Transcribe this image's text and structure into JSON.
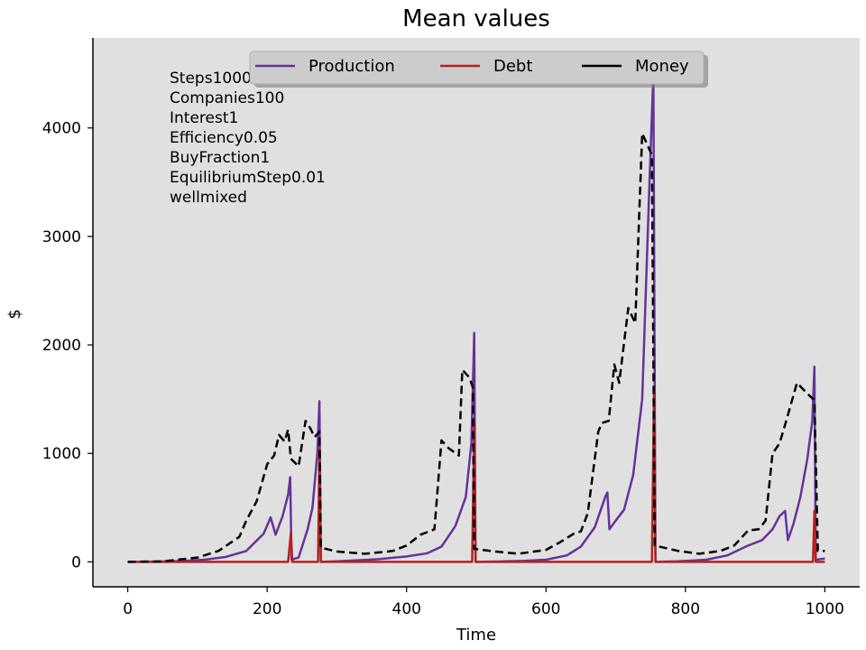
{
  "chart_data": {
    "type": "line",
    "title": "Mean values",
    "xlabel": "Time",
    "ylabel": "$",
    "xlim": [
      -50,
      1050
    ],
    "ylim": [
      -230,
      4830
    ],
    "xticks": [
      0,
      200,
      400,
      600,
      800,
      1000
    ],
    "yticks": [
      0,
      1000,
      2000,
      3000,
      4000
    ],
    "grid": false,
    "background": "#e0e0e0",
    "legend": {
      "placement": "top-center",
      "entries": [
        {
          "label": "Production",
          "color": "#663399",
          "style": "solid"
        },
        {
          "label": "Debt",
          "color": "#b22222",
          "style": "solid"
        },
        {
          "label": "Money",
          "color": "#000000",
          "style": "dashed"
        }
      ]
    },
    "annotation_lines": [
      "Steps1000",
      "Companies100",
      "Interest1",
      "Efficiency0.05",
      "BuyFraction1",
      "EquilibriumStep0.01",
      "wellmixed"
    ],
    "series": [
      {
        "name": "Production",
        "color": "#663399",
        "style": "solid",
        "points": [
          [
            0,
            0
          ],
          [
            40,
            2
          ],
          [
            80,
            8
          ],
          [
            110,
            20
          ],
          [
            140,
            45
          ],
          [
            170,
            100
          ],
          [
            195,
            260
          ],
          [
            205,
            410
          ],
          [
            212,
            250
          ],
          [
            222,
            420
          ],
          [
            230,
            620
          ],
          [
            233,
            780
          ],
          [
            235,
            20
          ],
          [
            245,
            40
          ],
          [
            258,
            300
          ],
          [
            265,
            500
          ],
          [
            272,
            1000
          ],
          [
            275,
            1480
          ],
          [
            277,
            0
          ],
          [
            300,
            5
          ],
          [
            330,
            15
          ],
          [
            360,
            25
          ],
          [
            400,
            50
          ],
          [
            430,
            80
          ],
          [
            450,
            140
          ],
          [
            470,
            330
          ],
          [
            485,
            600
          ],
          [
            493,
            1100
          ],
          [
            497,
            2110
          ],
          [
            499,
            0
          ],
          [
            530,
            3
          ],
          [
            570,
            10
          ],
          [
            600,
            20
          ],
          [
            630,
            60
          ],
          [
            650,
            140
          ],
          [
            670,
            320
          ],
          [
            685,
            600
          ],
          [
            688,
            640
          ],
          [
            691,
            300
          ],
          [
            700,
            380
          ],
          [
            712,
            480
          ],
          [
            725,
            800
          ],
          [
            738,
            1500
          ],
          [
            748,
            3400
          ],
          [
            754,
            4500
          ],
          [
            757,
            0
          ],
          [
            790,
            5
          ],
          [
            830,
            20
          ],
          [
            860,
            60
          ],
          [
            890,
            150
          ],
          [
            910,
            200
          ],
          [
            925,
            300
          ],
          [
            935,
            420
          ],
          [
            943,
            470
          ],
          [
            947,
            200
          ],
          [
            955,
            350
          ],
          [
            965,
            600
          ],
          [
            975,
            950
          ],
          [
            982,
            1300
          ],
          [
            985,
            1800
          ],
          [
            987,
            20
          ],
          [
            1000,
            30
          ]
        ]
      },
      {
        "name": "Debt",
        "color": "#b22222",
        "style": "solid",
        "points": [
          [
            0,
            0
          ],
          [
            230,
            0
          ],
          [
            234,
            270
          ],
          [
            236,
            0
          ],
          [
            273,
            0
          ],
          [
            275,
            1050
          ],
          [
            277,
            0
          ],
          [
            494,
            0
          ],
          [
            497,
            1300
          ],
          [
            499,
            0
          ],
          [
            752,
            0
          ],
          [
            755,
            1600
          ],
          [
            757,
            0
          ],
          [
            983,
            0
          ],
          [
            985,
            470
          ],
          [
            987,
            0
          ],
          [
            1000,
            0
          ]
        ]
      },
      {
        "name": "Money",
        "color": "#000000",
        "style": "dashed",
        "points": [
          [
            0,
            0
          ],
          [
            50,
            5
          ],
          [
            100,
            40
          ],
          [
            130,
            100
          ],
          [
            160,
            230
          ],
          [
            170,
            380
          ],
          [
            185,
            560
          ],
          [
            200,
            900
          ],
          [
            210,
            980
          ],
          [
            217,
            1170
          ],
          [
            225,
            1110
          ],
          [
            230,
            1220
          ],
          [
            234,
            950
          ],
          [
            245,
            880
          ],
          [
            255,
            1300
          ],
          [
            262,
            1230
          ],
          [
            268,
            1150
          ],
          [
            275,
            1200
          ],
          [
            277,
            130
          ],
          [
            300,
            95
          ],
          [
            340,
            75
          ],
          [
            380,
            100
          ],
          [
            400,
            150
          ],
          [
            420,
            250
          ],
          [
            440,
            300
          ],
          [
            450,
            1120
          ],
          [
            460,
            1050
          ],
          [
            475,
            980
          ],
          [
            480,
            1770
          ],
          [
            490,
            1700
          ],
          [
            495,
            1610
          ],
          [
            497,
            120
          ],
          [
            520,
            100
          ],
          [
            560,
            75
          ],
          [
            600,
            110
          ],
          [
            620,
            180
          ],
          [
            640,
            260
          ],
          [
            650,
            280
          ],
          [
            660,
            450
          ],
          [
            675,
            1200
          ],
          [
            680,
            1280
          ],
          [
            690,
            1300
          ],
          [
            698,
            1820
          ],
          [
            705,
            1650
          ],
          [
            718,
            2340
          ],
          [
            728,
            2200
          ],
          [
            738,
            3950
          ],
          [
            745,
            3850
          ],
          [
            752,
            3750
          ],
          [
            756,
            150
          ],
          [
            790,
            100
          ],
          [
            820,
            75
          ],
          [
            850,
            100
          ],
          [
            870,
            150
          ],
          [
            890,
            290
          ],
          [
            905,
            300
          ],
          [
            915,
            380
          ],
          [
            925,
            1000
          ],
          [
            935,
            1090
          ],
          [
            945,
            1310
          ],
          [
            960,
            1650
          ],
          [
            975,
            1550
          ],
          [
            985,
            1490
          ],
          [
            990,
            100
          ],
          [
            1000,
            100
          ]
        ]
      }
    ]
  }
}
